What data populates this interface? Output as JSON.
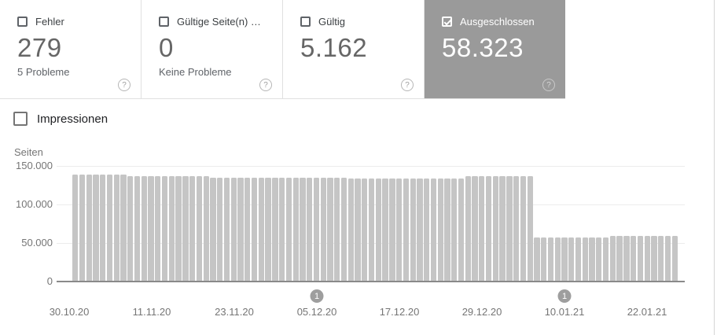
{
  "cards": [
    {
      "label": "Fehler",
      "value": "279",
      "sub": "5 Probleme",
      "checked": false,
      "selected": false
    },
    {
      "label": "Gültige Seite(n) …",
      "value": "0",
      "sub": "Keine Probleme",
      "checked": false,
      "selected": false
    },
    {
      "label": "Gültig",
      "value": "5.162",
      "sub": "",
      "checked": false,
      "selected": false
    },
    {
      "label": "Ausgeschlossen",
      "value": "58.323",
      "sub": "",
      "checked": true,
      "selected": true
    }
  ],
  "help_icon_glyph": "?",
  "impressions_toggle": {
    "label": "Impressionen",
    "checked": false
  },
  "colors": {
    "selected_card_bg": "#9a9a9a",
    "bar": "#c5c5c5",
    "axis": "#8a8a8a",
    "tick_text": "#757575",
    "card_border": "#e0e0e0"
  },
  "chart_data": {
    "type": "bar",
    "title": "",
    "xlabel": "",
    "ylabel": "Seiten",
    "ylim": [
      0,
      150000
    ],
    "grid": true,
    "yticks": [
      {
        "label": "150.000",
        "value": 150000
      },
      {
        "label": "100.000",
        "value": 100000
      },
      {
        "label": "50.000",
        "value": 50000
      },
      {
        "label": "0",
        "value": 0
      }
    ],
    "x_tick_labels": [
      {
        "label": "30.10.20",
        "index": 0
      },
      {
        "label": "11.11.20",
        "index": 12
      },
      {
        "label": "23.11.20",
        "index": 24
      },
      {
        "label": "05.12.20",
        "index": 36
      },
      {
        "label": "17.12.20",
        "index": 48
      },
      {
        "label": "29.12.20",
        "index": 60
      },
      {
        "label": "10.01.21",
        "index": 72
      },
      {
        "label": "22.01.21",
        "index": 84
      }
    ],
    "annotations": [
      {
        "label": "1",
        "index": 36
      },
      {
        "label": "1",
        "index": 72
      }
    ],
    "values": [
      139000,
      139000,
      139000,
      139000,
      139000,
      139000,
      139000,
      139000,
      137000,
      137000,
      137000,
      137000,
      137000,
      137000,
      137000,
      137000,
      137000,
      137000,
      137000,
      137000,
      134500,
      134500,
      134500,
      134500,
      134500,
      134500,
      134500,
      134500,
      134500,
      134500,
      134500,
      134500,
      134500,
      134500,
      134500,
      134500,
      134500,
      134500,
      134500,
      134500,
      134000,
      134000,
      134000,
      134000,
      134000,
      134000,
      134000,
      134000,
      134000,
      134000,
      134000,
      134000,
      134000,
      134000,
      134000,
      134000,
      134000,
      136500,
      136500,
      136500,
      136500,
      136500,
      136500,
      136500,
      136500,
      136500,
      136500,
      56000,
      56000,
      56000,
      56000,
      56000,
      56000,
      56000,
      56000,
      56000,
      56000,
      56000,
      58300,
      58300,
      58300,
      58300,
      58300,
      58300,
      58300,
      58300,
      58300,
      58300
    ]
  }
}
